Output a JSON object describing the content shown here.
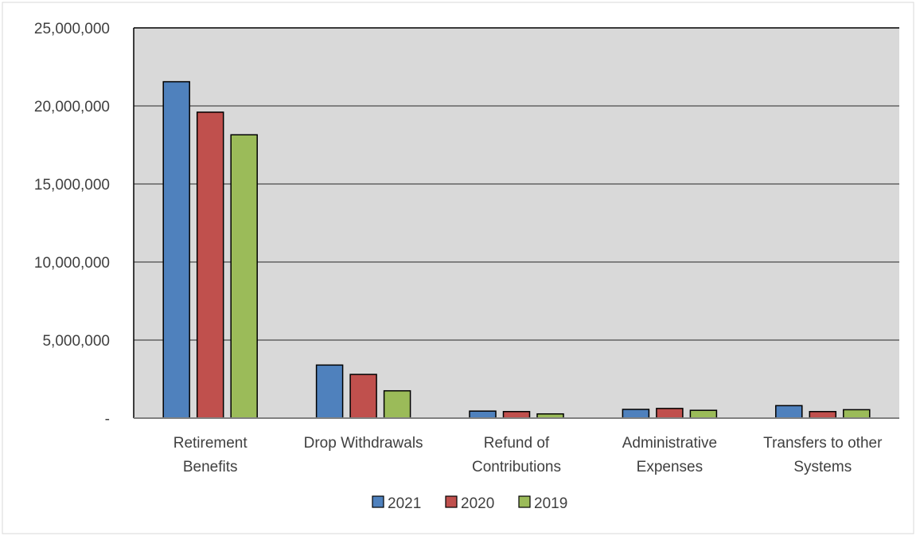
{
  "chart_data": {
    "type": "bar",
    "title": "",
    "xlabel": "",
    "ylabel": "",
    "ylim": [
      0,
      25000000
    ],
    "y_ticks": [
      0,
      5000000,
      10000000,
      15000000,
      20000000,
      25000000
    ],
    "y_tick_labels": [
      "-",
      "5,000,000",
      "10,000,000",
      "15,000,000",
      "20,000,000",
      "25,000,000"
    ],
    "categories": [
      [
        "Retirement",
        "Benefits"
      ],
      [
        "Drop Withdrawals"
      ],
      [
        "Refund of",
        "Contributions"
      ],
      [
        "Administrative",
        "Expenses"
      ],
      [
        "Transfers to other",
        "Systems"
      ]
    ],
    "series": [
      {
        "name": "2021",
        "color": "#4f81bd",
        "values": [
          21550000,
          3400000,
          450000,
          560000,
          800000
        ]
      },
      {
        "name": "2020",
        "color": "#c0504d",
        "values": [
          19600000,
          2800000,
          420000,
          620000,
          420000
        ]
      },
      {
        "name": "2019",
        "color": "#9bbb59",
        "values": [
          18150000,
          1750000,
          270000,
          500000,
          540000
        ]
      }
    ],
    "grid": true,
    "plot_background": "#d9d9d9",
    "legend_position": "bottom"
  }
}
